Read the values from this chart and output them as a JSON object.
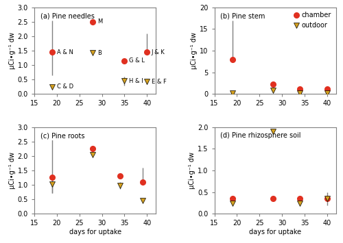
{
  "panels": {
    "a": {
      "title": "(a) Pine needles",
      "ylabel": "μCi•g⁻¹ dw",
      "ylim": [
        0,
        3.0
      ],
      "yticks": [
        0.0,
        0.5,
        1.0,
        1.5,
        2.0,
        2.5,
        3.0
      ],
      "chamber": {
        "x": [
          19,
          28,
          35,
          40
        ],
        "y": [
          1.45,
          2.5,
          1.15,
          1.45
        ],
        "yerr_lo": [
          0.8,
          0.0,
          0.0,
          0.0
        ],
        "yerr_hi": [
          1.1,
          0.0,
          0.0,
          0.65
        ],
        "labels": [
          "A & N",
          "M",
          "G & L",
          "J & K"
        ]
      },
      "outdoor": {
        "x": [
          19,
          28,
          35,
          40
        ],
        "y": [
          0.25,
          1.43,
          0.45,
          0.43
        ],
        "yerr_lo": [
          0.0,
          0.0,
          0.15,
          0.1
        ],
        "yerr_hi": [
          0.0,
          0.0,
          0.15,
          0.1
        ],
        "labels": [
          "C & D",
          "B",
          "H & I",
          "E & F"
        ]
      }
    },
    "b": {
      "title": "(b) Pine stem",
      "ylabel": "μCi•g⁻¹ dw",
      "ylim": [
        0,
        20
      ],
      "yticks": [
        0,
        5,
        10,
        15,
        20
      ],
      "chamber": {
        "x": [
          19,
          28,
          34,
          40
        ],
        "y": [
          8.0,
          2.2,
          1.1,
          1.1
        ],
        "yerr_lo": [
          0.0,
          0.0,
          0.0,
          0.0
        ],
        "yerr_hi": [
          9.0,
          0.0,
          0.0,
          0.0
        ]
      },
      "outdoor": {
        "x": [
          19,
          28,
          34,
          40
        ],
        "y": [
          0.3,
          0.9,
          0.2,
          0.3
        ],
        "yerr_lo": [
          0.3,
          0.0,
          0.0,
          0.0
        ],
        "yerr_hi": [
          0.3,
          0.0,
          0.0,
          0.0
        ]
      }
    },
    "c": {
      "title": "(c) Pine roots",
      "ylabel": "μCi•g⁻¹ dw",
      "xlabel": "days for uptake",
      "ylim": [
        0,
        3.0
      ],
      "yticks": [
        0.0,
        0.5,
        1.0,
        1.5,
        2.0,
        2.5,
        3.0
      ],
      "chamber": {
        "x": [
          19,
          28,
          34,
          39
        ],
        "y": [
          1.27,
          2.25,
          1.3,
          1.1
        ],
        "yerr_lo": [
          0.55,
          0.0,
          0.08,
          0.0
        ],
        "yerr_hi": [
          1.3,
          0.0,
          0.08,
          0.5
        ]
      },
      "outdoor": {
        "x": [
          19,
          28,
          34,
          39
        ],
        "y": [
          1.02,
          2.05,
          0.97,
          0.47
        ],
        "yerr_lo": [
          0.3,
          0.0,
          0.12,
          0.0
        ],
        "yerr_hi": [
          0.3,
          0.0,
          0.12,
          0.0
        ]
      }
    },
    "d": {
      "title": "(d) Pine rhizosphere soil",
      "ylabel": "μCi•g⁻¹ dw",
      "xlabel": "days for uptake",
      "ylim": [
        0,
        2.0
      ],
      "yticks": [
        0.0,
        0.5,
        1.0,
        1.5,
        2.0
      ],
      "chamber": {
        "x": [
          19,
          28,
          34,
          40
        ],
        "y": [
          0.35,
          0.35,
          0.35,
          0.35
        ],
        "yerr_lo": [
          0.0,
          0.0,
          0.0,
          0.0
        ],
        "yerr_hi": [
          0.0,
          0.0,
          0.0,
          0.0
        ]
      },
      "outdoor": {
        "x": [
          19,
          28,
          34,
          40
        ],
        "y": [
          0.25,
          1.9,
          0.25,
          0.35
        ],
        "yerr_lo": [
          0.0,
          0.0,
          0.0,
          0.15
        ],
        "yerr_hi": [
          0.0,
          0.0,
          0.0,
          0.15
        ]
      }
    }
  },
  "chamber_color": "#e03020",
  "outdoor_color": "#d4a020",
  "xlim": [
    15,
    42
  ],
  "xticks": [
    15,
    20,
    25,
    30,
    35,
    40
  ]
}
